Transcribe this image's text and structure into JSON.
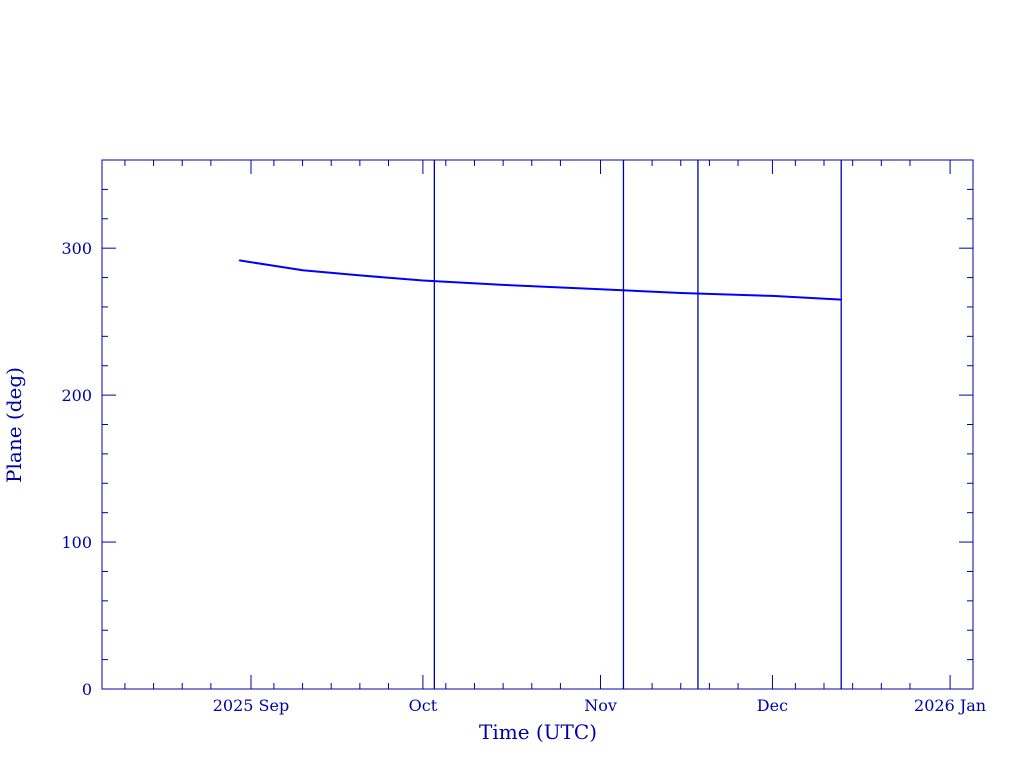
{
  "chart_data": {
    "type": "line",
    "title": "",
    "xlabel": "Time (UTC)",
    "ylabel": "Plane (deg)",
    "xlim": [
      "2025-08-06",
      "2026-01-05"
    ],
    "ylim": [
      0,
      360
    ],
    "x_ticks": [
      {
        "date": "2025-09-01",
        "label": "2025 Sep"
      },
      {
        "date": "2025-10-01",
        "label": "Oct"
      },
      {
        "date": "2025-11-01",
        "label": "Nov"
      },
      {
        "date": "2025-12-01",
        "label": "Dec"
      },
      {
        "date": "2026-01-01",
        "label": "2026 Jan"
      }
    ],
    "y_ticks": [
      0,
      100,
      200,
      300
    ],
    "grid": false,
    "series": [
      {
        "x": [
          "2025-08-30",
          "2025-09-05",
          "2025-09-10",
          "2025-09-20",
          "2025-10-01",
          "2025-10-15",
          "2025-11-01",
          "2025-11-15",
          "2025-12-01",
          "2025-12-13"
        ],
        "y": [
          291.7,
          288,
          285,
          281.5,
          278,
          275,
          272,
          269.5,
          267.5,
          265
        ]
      }
    ],
    "vertical_lines": [
      "2025-10-03",
      "2025-11-05",
      "2025-11-18",
      "2025-12-13"
    ],
    "colors": {
      "axes": "#0000a8",
      "series": "#0000ff"
    }
  }
}
